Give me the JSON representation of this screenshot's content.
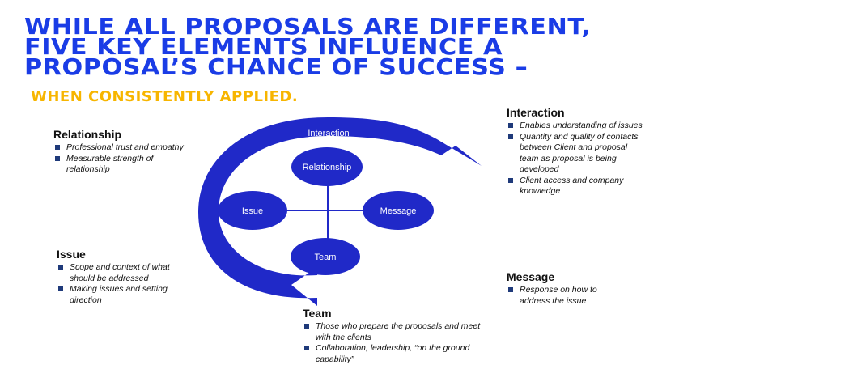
{
  "title": {
    "line1": "WHILE ALL PROPOSALS ARE DIFFERENT,",
    "line2": "FIVE KEY ELEMENTS INFLUENCE A",
    "line3": "PROPOSAL’S CHANCE OF SUCCESS –"
  },
  "subtitle": "WHEN CONSISTENTLY APPLIED.",
  "colors": {
    "title": "#1a3ce6",
    "subtitle": "#f7b500",
    "diagram": "#2029c8",
    "bullet": "#1f3a7a"
  },
  "relationship": {
    "heading": "Relationship",
    "items": [
      "Professional trust and empathy",
      "Measurable strength of relationship"
    ]
  },
  "interaction": {
    "heading": "Interaction",
    "items": [
      "Enables understanding of issues",
      "Quantity and quality of contacts between Client and proposal team as proposal is being developed",
      "Client access and company knowledge"
    ]
  },
  "issue": {
    "heading": "Issue",
    "items": [
      "Scope and context of what should be addressed",
      "Making issues and setting direction"
    ]
  },
  "message": {
    "heading": "Message",
    "items": [
      "Response on how to address the issue"
    ]
  },
  "team": {
    "heading": "Team",
    "items": [
      "Those who prepare the proposals and meet with the clients",
      "Collaboration, leadership, “on the ground capability”"
    ]
  },
  "diagram": {
    "ring_label": "Interaction",
    "nodes": {
      "top": "Relationship",
      "left": "Issue",
      "right": "Message",
      "bottom": "Team"
    }
  }
}
